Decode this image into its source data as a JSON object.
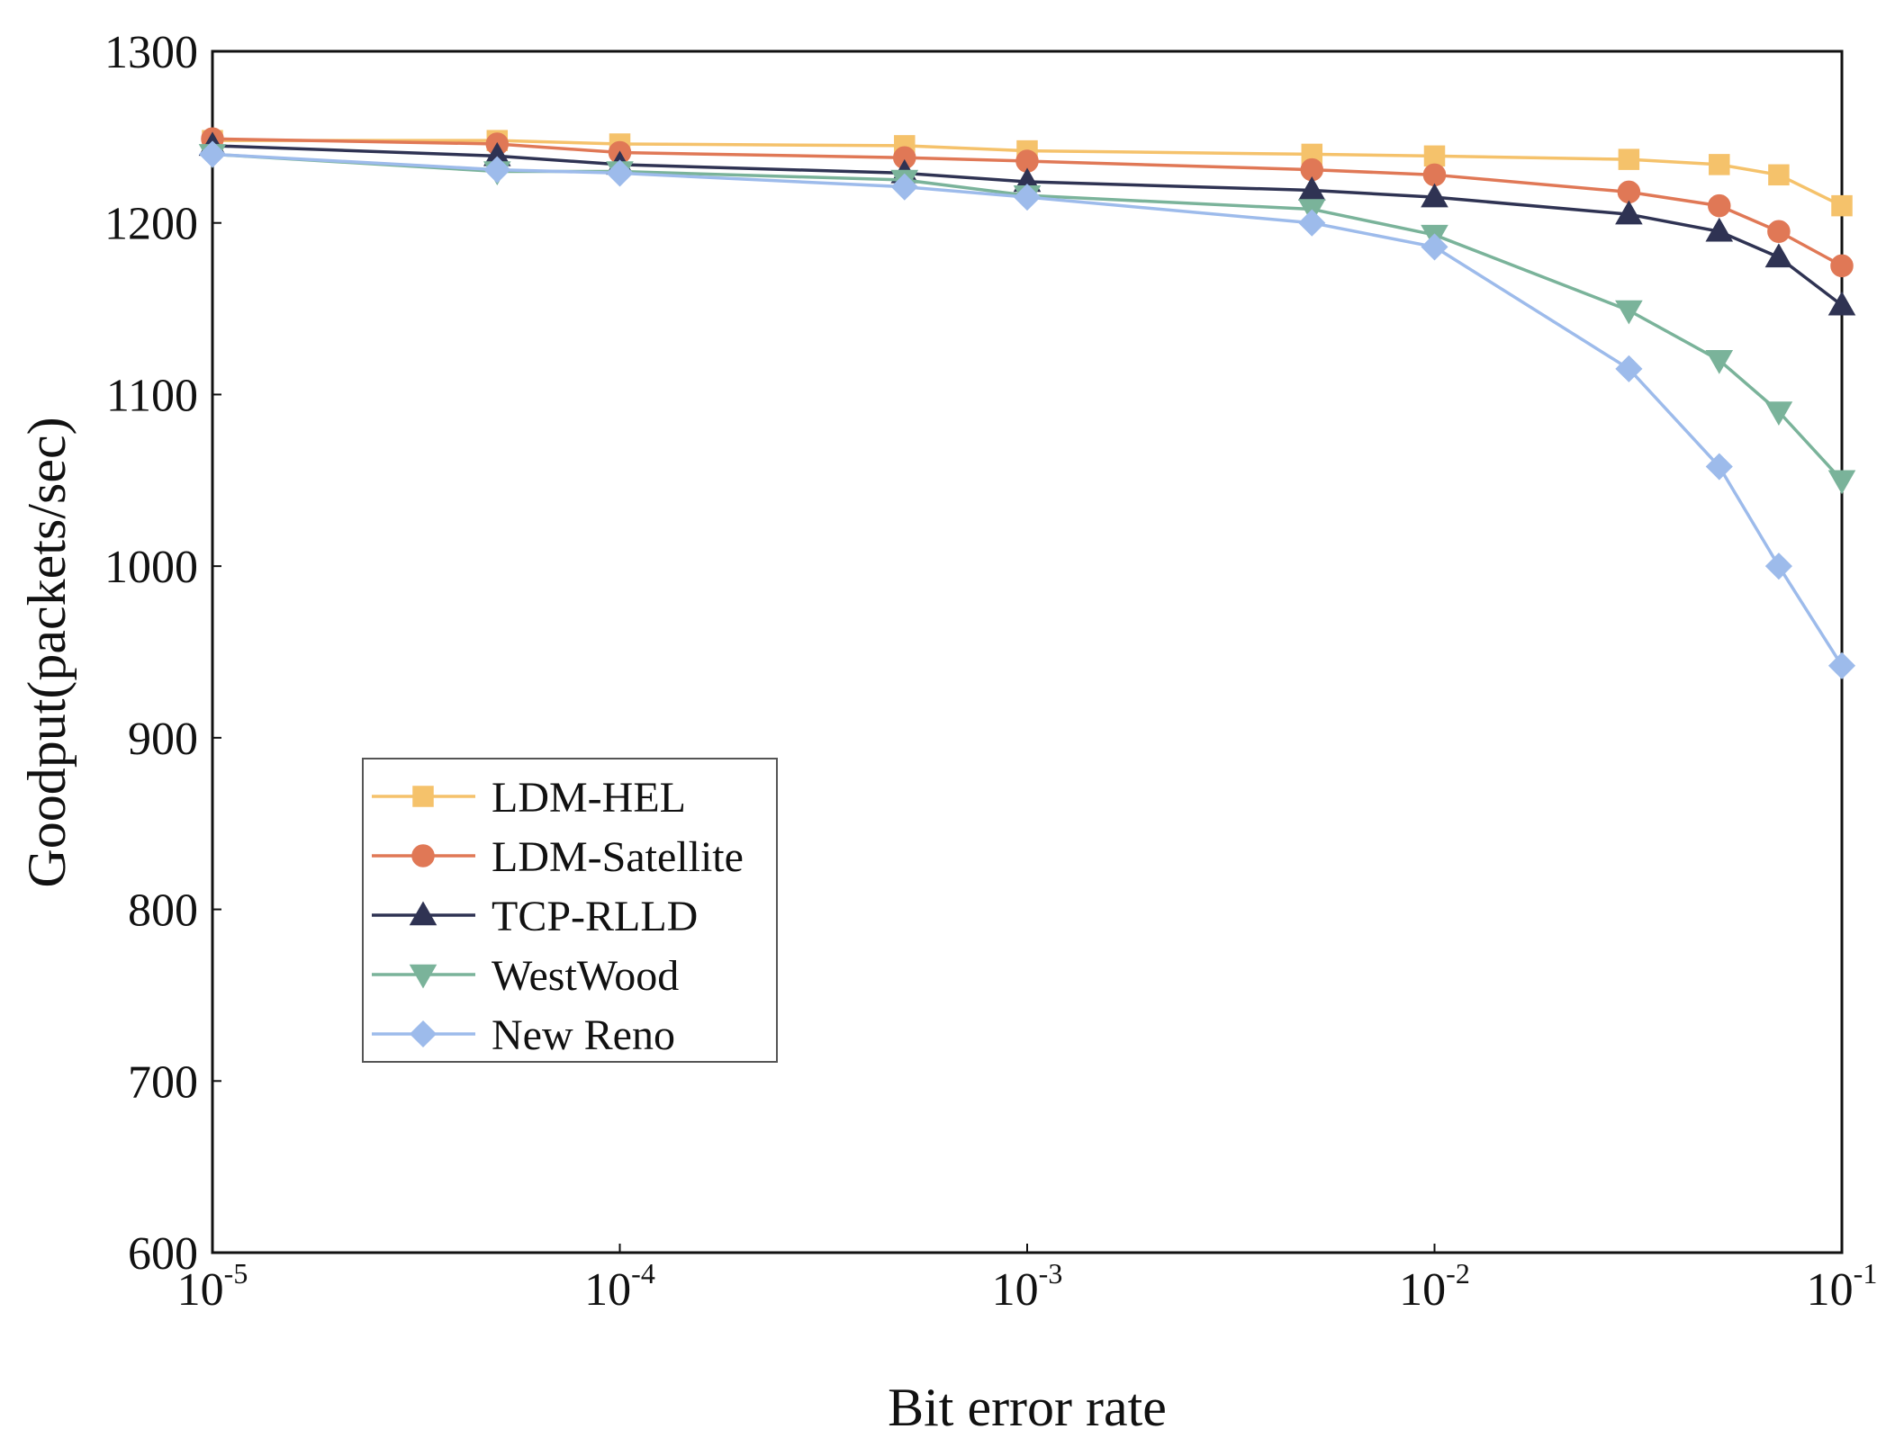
{
  "chart_data": {
    "type": "line",
    "title": "",
    "xlabel": "Bit error rate",
    "ylabel": "Goodput(packets/sec)",
    "xscale": "log",
    "xlim_exponents": [
      -5,
      -1
    ],
    "x_ticks": [
      {
        "base": "10",
        "exp": "-5",
        "value": 1e-05
      },
      {
        "base": "10",
        "exp": "-4",
        "value": 0.0001
      },
      {
        "base": "10",
        "exp": "-3",
        "value": 0.001
      },
      {
        "base": "10",
        "exp": "-2",
        "value": 0.01
      },
      {
        "base": "10",
        "exp": "-1",
        "value": 0.1
      }
    ],
    "ylim": [
      600,
      1300
    ],
    "y_ticks": [
      "600",
      "700",
      "800",
      "900",
      "1000",
      "1100",
      "1200",
      "1300"
    ],
    "x": [
      1e-05,
      5e-05,
      0.0001,
      0.0005,
      0.001,
      0.005,
      0.01,
      0.03,
      0.05,
      0.07,
      0.1
    ],
    "legend_position": "lower-left",
    "series": [
      {
        "name": "LDM-HEL",
        "marker": "square",
        "color": "#F5C26B",
        "values": [
          1248,
          1248,
          1246,
          1245,
          1242,
          1240,
          1239,
          1237,
          1234,
          1228,
          1210
        ]
      },
      {
        "name": "LDM-Satellite",
        "marker": "circle",
        "color": "#E07856",
        "values": [
          1249,
          1246,
          1241,
          1238,
          1236,
          1231,
          1228,
          1218,
          1210,
          1195,
          1175
        ]
      },
      {
        "name": "TCP-RLLD",
        "marker": "triangle-up",
        "color": "#2F3353",
        "values": [
          1245,
          1239,
          1234,
          1229,
          1224,
          1219,
          1215,
          1205,
          1195,
          1180,
          1152
        ]
      },
      {
        "name": "WestWood",
        "marker": "triangle-down",
        "color": "#7AB39A",
        "values": [
          1240,
          1230,
          1230,
          1225,
          1216,
          1208,
          1193,
          1149,
          1120,
          1090,
          1050
        ]
      },
      {
        "name": "New Reno",
        "marker": "diamond",
        "color": "#9DBBEB",
        "values": [
          1240,
          1231,
          1229,
          1221,
          1215,
          1200,
          1186,
          1115,
          1058,
          1000,
          942
        ]
      }
    ]
  }
}
